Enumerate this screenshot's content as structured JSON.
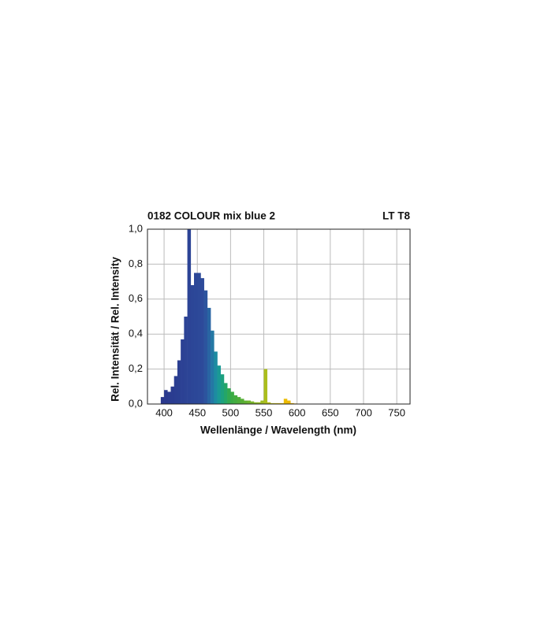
{
  "chart_data": {
    "type": "histogram",
    "title": "0182 COLOUR mix blue 2",
    "subtitle": "LT T8",
    "x_label": "Wellenlänge / Wavelength (nm)",
    "y_label": "Rel. Intensität / Rel. Intensity",
    "bins": [
      395,
      400,
      405,
      410,
      415,
      420,
      425,
      430,
      435,
      440,
      445,
      450,
      455,
      460,
      465,
      470,
      475,
      480,
      485,
      490,
      495,
      500,
      505,
      510,
      515,
      520,
      525,
      530,
      535,
      540,
      545,
      550,
      555,
      560,
      565,
      570,
      575,
      580,
      585,
      590,
      595,
      600
    ],
    "counts": [
      0.04,
      0.08,
      0.07,
      0.1,
      0.16,
      0.25,
      0.37,
      0.5,
      1.0,
      0.68,
      0.75,
      0.75,
      0.72,
      0.65,
      0.55,
      0.42,
      0.3,
      0.22,
      0.17,
      0.12,
      0.09,
      0.07,
      0.05,
      0.04,
      0.03,
      0.02,
      0.02,
      0.015,
      0.01,
      0.01,
      0.02,
      0.2,
      0.01,
      0.005,
      0.005,
      0.005,
      0.005,
      0.03,
      0.02,
      0.005,
      0.003
    ],
    "xlim": [
      375,
      770
    ],
    "xticks": [
      400,
      450,
      500,
      550,
      600,
      650,
      700,
      750
    ],
    "ylim": [
      0,
      1
    ],
    "yticks": [
      {
        "value": 0,
        "label": "0,0"
      },
      {
        "value": 0.2,
        "label": "0,2"
      },
      {
        "value": 0.4,
        "label": "0,4"
      },
      {
        "value": 0.6,
        "label": "0,6"
      },
      {
        "value": 0.8,
        "label": "0,8"
      },
      {
        "value": 1.0,
        "label": "1,0"
      }
    ],
    "grid": true
  }
}
